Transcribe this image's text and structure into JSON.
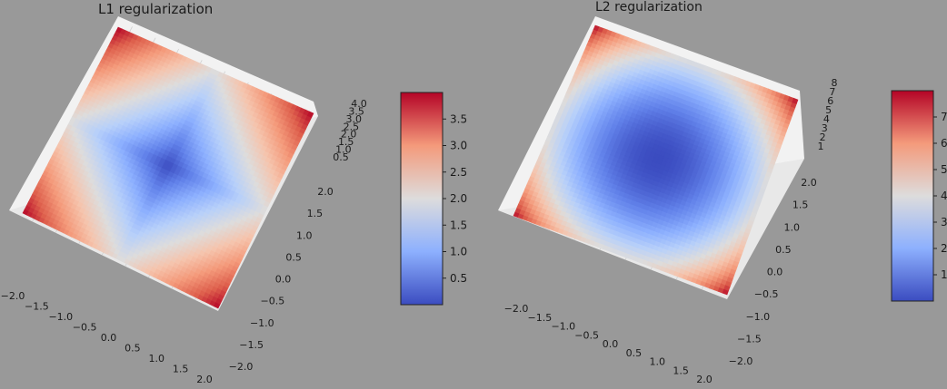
{
  "chart_data": [
    {
      "type": "surface",
      "title": "L1 regularization",
      "function": "|x| + |y|",
      "x_ticks": [
        "−2.0",
        "−1.5",
        "−1.0",
        "−0.5",
        "0.0",
        "0.5",
        "1.0",
        "1.5",
        "2.0"
      ],
      "y_ticks": [
        "2.0",
        "1.5",
        "1.0",
        "0.5",
        "0.0",
        "−0.5",
        "−1.0",
        "−1.5",
        "−2.0"
      ],
      "z_ticks": [
        "4.0",
        "3.5",
        "3.0",
        "2.5",
        "2.0",
        "1.5",
        "1.0",
        "0.5"
      ],
      "xlim": [
        -2,
        2
      ],
      "ylim": [
        -2,
        2
      ],
      "zlim": [
        0,
        4
      ],
      "colorbar": {
        "ticks": [
          "3.5",
          "3.0",
          "2.5",
          "2.0",
          "1.5",
          "1.0",
          "0.5"
        ],
        "values": [
          3.5,
          3.0,
          2.5,
          2.0,
          1.5,
          1.0,
          0.5
        ],
        "min": 0,
        "max": 4
      },
      "colormap": "coolwarm",
      "grid": true
    },
    {
      "type": "surface",
      "title": "L2 regularization",
      "function": "x^2 + y^2",
      "x_ticks": [
        "−2.0",
        "−1.5",
        "−1.0",
        "−0.5",
        "0.0",
        "0.5",
        "1.0",
        "1.5",
        "2.0"
      ],
      "y_ticks": [
        "2.0",
        "1.5",
        "1.0",
        "0.5",
        "0.0",
        "−0.5",
        "−1.0",
        "−1.5",
        "−2.0"
      ],
      "z_ticks": [
        "8",
        "7",
        "6",
        "5",
        "4",
        "3",
        "2",
        "1"
      ],
      "xlim": [
        -2,
        2
      ],
      "ylim": [
        -2,
        2
      ],
      "zlim": [
        0,
        8
      ],
      "colorbar": {
        "ticks": [
          "7",
          "6",
          "5",
          "4",
          "3",
          "2",
          "1"
        ],
        "values": [
          7,
          6,
          5,
          4,
          3,
          2,
          1
        ],
        "min": 0,
        "max": 8
      },
      "colormap": "coolwarm",
      "grid": true
    }
  ]
}
